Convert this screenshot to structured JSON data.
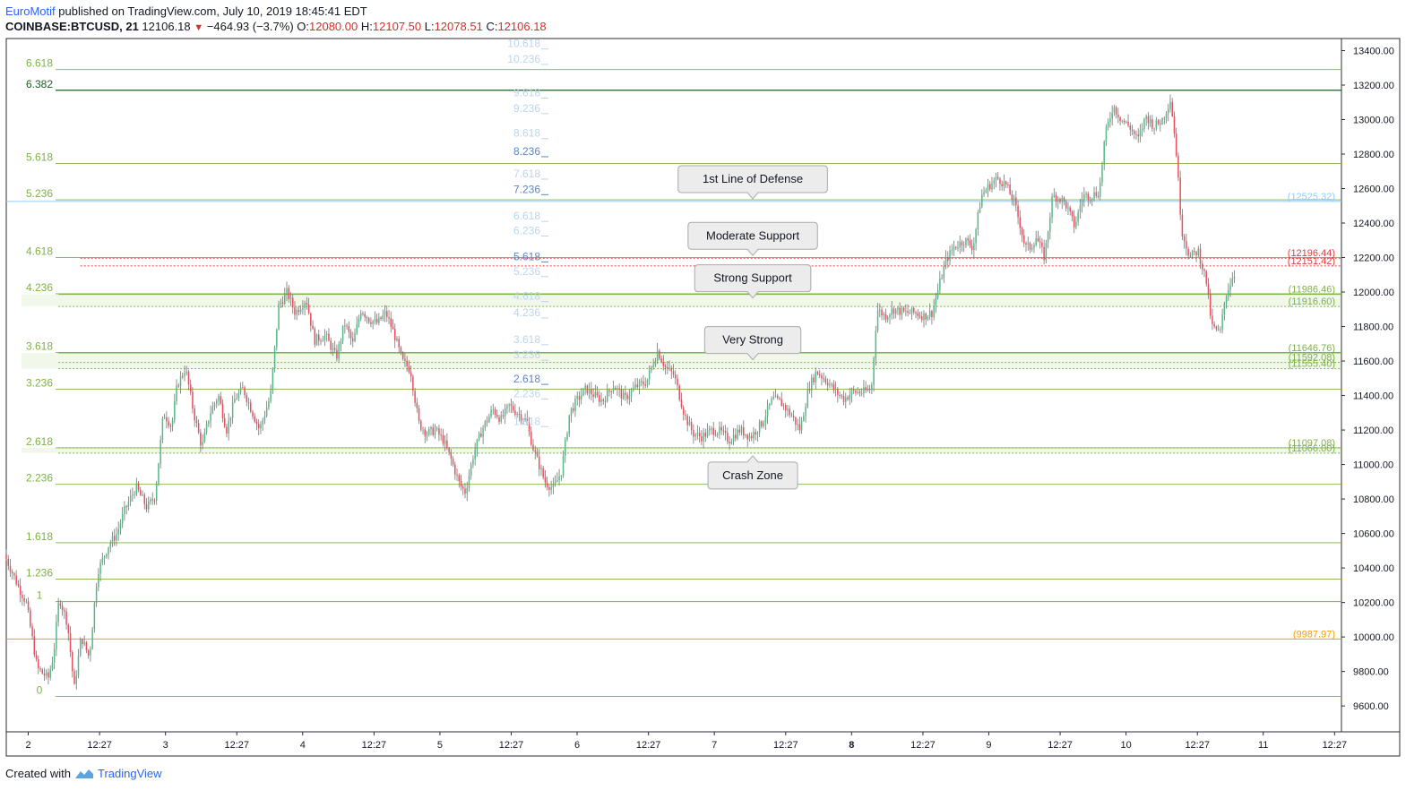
{
  "header": {
    "author": "EuroMotif",
    "published": "published on TradingView.com, July 10, 2019 18:45:41 EDT",
    "symbol": "COINBASE:BTCUSD, 21",
    "last": "12106.18",
    "down_arrow": "▼",
    "change": "−464.93 (−3.7%)",
    "o_label": "O:",
    "o_value": "12080.00",
    "h_label": "H:",
    "h_value": "12107.50",
    "l_label": "L:",
    "l_value": "12078.51",
    "c_label": "C:",
    "c_value": "12106.18"
  },
  "footer": {
    "created_with": "Created with",
    "brand": "TradingView"
  },
  "chart_data": {
    "type": "candlestick",
    "y_ticks": [
      "13400.00",
      "13200.00",
      "13000.00",
      "12800.00",
      "12600.00",
      "12400.00",
      "12200.00",
      "12000.00",
      "11800.00",
      "11600.00",
      "11400.00",
      "11200.00",
      "11000.00",
      "10800.00",
      "10600.00",
      "10400.00",
      "10200.00",
      "10000.00",
      "9800.00",
      "9600.00"
    ],
    "ylim": [
      9450,
      13470
    ],
    "x_ticks": [
      {
        "label": "2",
        "day": 0.0
      },
      {
        "label": "12:27",
        "day": 0.52
      },
      {
        "label": "3",
        "day": 1.0
      },
      {
        "label": "12:27",
        "day": 1.52
      },
      {
        "label": "4",
        "day": 2.0
      },
      {
        "label": "12:27",
        "day": 2.52
      },
      {
        "label": "5",
        "day": 3.0
      },
      {
        "label": "12:27",
        "day": 3.52
      },
      {
        "label": "6",
        "day": 4.0
      },
      {
        "label": "12:27",
        "day": 4.52
      },
      {
        "label": "7",
        "day": 5.0
      },
      {
        "label": "12:27",
        "day": 5.52
      },
      {
        "label": "8",
        "day": 6.0
      },
      {
        "label": "12:27",
        "day": 6.52
      },
      {
        "label": "9",
        "day": 7.0
      },
      {
        "label": "12:27",
        "day": 7.52
      },
      {
        "label": "10",
        "day": 8.0
      },
      {
        "label": "12:27",
        "day": 8.52
      },
      {
        "label": "11",
        "day": 9.0
      },
      {
        "label": "12:27",
        "day": 9.52
      }
    ],
    "xlim": [
      -0.16,
      9.57
    ],
    "colors": {
      "up": "#53b987",
      "down": "#eb4d5c",
      "wick": "#737375",
      "fib": "#7cb342",
      "fib_dark": "#1b5e20",
      "red_level": "#e53935",
      "blue_level": "#90caf9",
      "orange_level": "#ff9800"
    },
    "fib_left": [
      {
        "label": "6.618",
        "value": 13290
      },
      {
        "label": "6.382",
        "value": 13170,
        "dark": true
      },
      {
        "label": "5.618",
        "value": 12745
      },
      {
        "label": "5.236",
        "value": 12535
      },
      {
        "label": "4.618",
        "value": 12200
      },
      {
        "label": "4.236",
        "value": 11990
      },
      {
        "label": "3.618",
        "value": 11650
      },
      {
        "label": "3.236",
        "value": 11437
      },
      {
        "label": "2.618",
        "value": 11097
      },
      {
        "label": "2.236",
        "value": 10885
      },
      {
        "label": "1.618",
        "value": 10546
      },
      {
        "label": "1.236",
        "value": 10336
      },
      {
        "label": "1",
        "value": 10205
      },
      {
        "label": "0",
        "value": 9655
      }
    ],
    "fib_mid": [
      {
        "label": "10.618",
        "value": 13420,
        "faint": true
      },
      {
        "label": "10.236",
        "value": 13330,
        "faint": true
      },
      {
        "label": "9.618",
        "value": 13135,
        "faint": true
      },
      {
        "label": "9.236",
        "value": 13045,
        "faint": true
      },
      {
        "label": "8.618",
        "value": 12900,
        "faint": true
      },
      {
        "label": "8.236",
        "value": 12795
      },
      {
        "label": "7.618",
        "value": 12665,
        "faint": true
      },
      {
        "label": "7.236",
        "value": 12575
      },
      {
        "label": "6.618",
        "value": 12420,
        "faint": true
      },
      {
        "label": "6.236",
        "value": 12335,
        "faint": true
      },
      {
        "label": "5.618",
        "value": 12185
      },
      {
        "label": "5.236",
        "value": 12100,
        "faint": true
      },
      {
        "label": "4.618",
        "value": 11955,
        "faint": true
      },
      {
        "label": "4.236",
        "value": 11860,
        "faint": true
      },
      {
        "label": "3.618",
        "value": 11705,
        "faint": true
      },
      {
        "label": "3.236",
        "value": 11615,
        "faint": true
      },
      {
        "label": "2.618",
        "value": 11475
      },
      {
        "label": "2.236",
        "value": 11390,
        "faint": true
      },
      {
        "label": "1.618",
        "value": 11230,
        "faint": true
      }
    ],
    "price_levels": [
      {
        "label": "(12525.32)",
        "value": 12525.32,
        "color": "blue"
      },
      {
        "label": "(12196.44)",
        "value": 12196.44,
        "color": "red"
      },
      {
        "label": "(12151.42)",
        "value": 12151.42,
        "color": "red"
      },
      {
        "label": "(11986.46)",
        "value": 11986.46,
        "color": "green"
      },
      {
        "label": "(11916.60)",
        "value": 11916.6,
        "color": "green"
      },
      {
        "label": "(11646.76)",
        "value": 11646.76,
        "color": "green"
      },
      {
        "label": "(11592.08)",
        "value": 11592.08,
        "color": "green"
      },
      {
        "label": "(11555.40)",
        "value": 11555.4,
        "color": "green"
      },
      {
        "label": "(11097.08)",
        "value": 11097.08,
        "color": "green"
      },
      {
        "label": "(11066.00)",
        "value": 11066.0,
        "color": "green"
      },
      {
        "label": "(9987.97)",
        "value": 9987.97,
        "color": "orange"
      }
    ],
    "callouts": [
      {
        "text": "1st Line of Defense",
        "day": 5.28,
        "value": 12525,
        "pointer": "down"
      },
      {
        "text": "Moderate Support",
        "day": 5.28,
        "value": 12196,
        "pointer": "down"
      },
      {
        "text": "Strong Support",
        "day": 5.28,
        "value": 11950,
        "pointer": "down"
      },
      {
        "text": "Very Strong",
        "day": 5.28,
        "value": 11592,
        "pointer": "down"
      },
      {
        "text": "Crash Zone",
        "day": 5.28,
        "value": 11066,
        "pointer": "up"
      }
    ],
    "path": [
      [
        -0.16,
        10480
      ],
      [
        -0.05,
        10280
      ],
      [
        0.0,
        10200
      ],
      [
        0.08,
        9820
      ],
      [
        0.16,
        9760
      ],
      [
        0.2,
        9900
      ],
      [
        0.24,
        10230
      ],
      [
        0.3,
        10080
      ],
      [
        0.35,
        9700
      ],
      [
        0.4,
        10000
      ],
      [
        0.46,
        9880
      ],
      [
        0.52,
        10380
      ],
      [
        0.6,
        10530
      ],
      [
        0.66,
        10600
      ],
      [
        0.72,
        10740
      ],
      [
        0.8,
        10870
      ],
      [
        0.88,
        10750
      ],
      [
        0.94,
        10820
      ],
      [
        1.0,
        11300
      ],
      [
        1.06,
        11220
      ],
      [
        1.1,
        11460
      ],
      [
        1.16,
        11560
      ],
      [
        1.22,
        11300
      ],
      [
        1.28,
        11100
      ],
      [
        1.34,
        11300
      ],
      [
        1.4,
        11400
      ],
      [
        1.46,
        11200
      ],
      [
        1.52,
        11380
      ],
      [
        1.58,
        11440
      ],
      [
        1.64,
        11320
      ],
      [
        1.7,
        11200
      ],
      [
        1.78,
        11400
      ],
      [
        1.84,
        11920
      ],
      [
        1.9,
        12000
      ],
      [
        1.96,
        11880
      ],
      [
        2.04,
        11960
      ],
      [
        2.1,
        11720
      ],
      [
        2.18,
        11750
      ],
      [
        2.26,
        11620
      ],
      [
        2.32,
        11820
      ],
      [
        2.38,
        11700
      ],
      [
        2.44,
        11900
      ],
      [
        2.5,
        11840
      ],
      [
        2.56,
        11820
      ],
      [
        2.62,
        11880
      ],
      [
        2.68,
        11760
      ],
      [
        2.74,
        11600
      ],
      [
        2.8,
        11550
      ],
      [
        2.86,
        11240
      ],
      [
        2.92,
        11180
      ],
      [
        2.98,
        11200
      ],
      [
        3.04,
        11140
      ],
      [
        3.1,
        11020
      ],
      [
        3.16,
        10880
      ],
      [
        3.2,
        10840
      ],
      [
        3.26,
        11060
      ],
      [
        3.32,
        11200
      ],
      [
        3.4,
        11320
      ],
      [
        3.46,
        11260
      ],
      [
        3.52,
        11340
      ],
      [
        3.58,
        11300
      ],
      [
        3.64,
        11260
      ],
      [
        3.7,
        11080
      ],
      [
        3.78,
        10900
      ],
      [
        3.84,
        10860
      ],
      [
        3.9,
        10960
      ],
      [
        3.96,
        11300
      ],
      [
        4.02,
        11380
      ],
      [
        4.08,
        11440
      ],
      [
        4.14,
        11400
      ],
      [
        4.2,
        11370
      ],
      [
        4.28,
        11460
      ],
      [
        4.36,
        11380
      ],
      [
        4.44,
        11450
      ],
      [
        4.52,
        11480
      ],
      [
        4.6,
        11660
      ],
      [
        4.66,
        11560
      ],
      [
        4.72,
        11520
      ],
      [
        4.8,
        11280
      ],
      [
        4.86,
        11180
      ],
      [
        4.92,
        11160
      ],
      [
        5.0,
        11200
      ],
      [
        5.06,
        11190
      ],
      [
        5.12,
        11140
      ],
      [
        5.2,
        11200
      ],
      [
        5.28,
        11160
      ],
      [
        5.36,
        11240
      ],
      [
        5.44,
        11380
      ],
      [
        5.5,
        11360
      ],
      [
        5.58,
        11280
      ],
      [
        5.64,
        11200
      ],
      [
        5.7,
        11440
      ],
      [
        5.76,
        11540
      ],
      [
        5.84,
        11480
      ],
      [
        5.9,
        11420
      ],
      [
        5.96,
        11380
      ],
      [
        6.02,
        11420
      ],
      [
        6.1,
        11420
      ],
      [
        6.16,
        11440
      ],
      [
        6.2,
        11900
      ],
      [
        6.26,
        11860
      ],
      [
        6.32,
        11900
      ],
      [
        6.4,
        11880
      ],
      [
        6.48,
        11880
      ],
      [
        6.54,
        11860
      ],
      [
        6.6,
        11880
      ],
      [
        6.64,
        12000
      ],
      [
        6.7,
        12180
      ],
      [
        6.76,
        12260
      ],
      [
        6.84,
        12300
      ],
      [
        6.9,
        12260
      ],
      [
        6.96,
        12560
      ],
      [
        7.02,
        12620
      ],
      [
        7.08,
        12660
      ],
      [
        7.14,
        12620
      ],
      [
        7.2,
        12520
      ],
      [
        7.24,
        12400
      ],
      [
        7.28,
        12260
      ],
      [
        7.32,
        12260
      ],
      [
        7.36,
        12320
      ],
      [
        7.42,
        12200
      ],
      [
        7.48,
        12560
      ],
      [
        7.54,
        12540
      ],
      [
        7.58,
        12500
      ],
      [
        7.64,
        12380
      ],
      [
        7.7,
        12560
      ],
      [
        7.76,
        12560
      ],
      [
        7.82,
        12580
      ],
      [
        7.86,
        12900
      ],
      [
        7.92,
        13080
      ],
      [
        7.98,
        13000
      ],
      [
        8.04,
        12960
      ],
      [
        8.1,
        12880
      ],
      [
        8.16,
        13020
      ],
      [
        8.22,
        12960
      ],
      [
        8.28,
        13000
      ],
      [
        8.34,
        13120
      ],
      [
        8.38,
        12820
      ],
      [
        8.42,
        12360
      ],
      [
        8.48,
        12200
      ],
      [
        8.54,
        12240
      ],
      [
        8.6,
        12060
      ],
      [
        8.64,
        11800
      ],
      [
        8.7,
        11760
      ],
      [
        8.74,
        11980
      ],
      [
        8.8,
        12106
      ]
    ]
  }
}
